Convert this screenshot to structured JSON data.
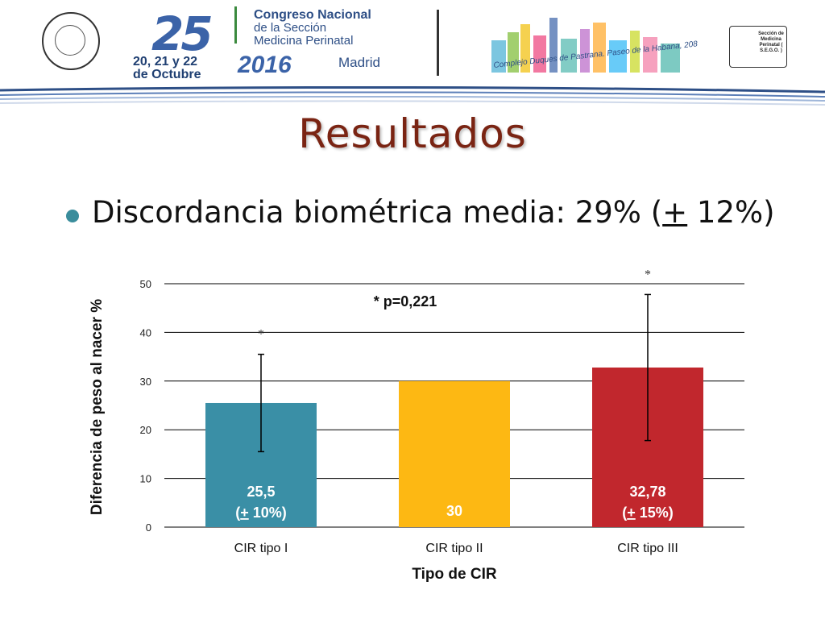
{
  "header": {
    "anniversary": "25",
    "congress_line1": "Congreso Nacional",
    "congress_line2": "de la Sección",
    "congress_line3": "Medicina Perinatal",
    "dates_line1": "20, 21 y 22",
    "dates_line2": "de Octubre",
    "year": "2016",
    "city": "Madrid",
    "venue": "Complejo Duques de Pastrana. Paseo de la Habana, 208",
    "right_logo_text": "Sección de Medicina Perinatal ( S.E.G.O. )"
  },
  "slide": {
    "title": "Resultados",
    "bullet_prefix": "Discordancia biométrica media: 29% (",
    "bullet_pm": "+",
    "bullet_suffix": " 12%)"
  },
  "colors": {
    "title": "#7a2413",
    "bar_tipo1": "#3a8fa6",
    "bar_tipo2": "#fdb813",
    "bar_tipo3": "#c1272d",
    "bullet": "#3a8d9c"
  },
  "chart_data": {
    "type": "bar",
    "categories": [
      "CIR tipo I",
      "CIR tipo II",
      "CIR tipo III"
    ],
    "values": [
      25.5,
      30,
      32.78
    ],
    "error_bars": [
      10,
      null,
      15
    ],
    "data_labels": [
      [
        "25,5",
        "(+ 10%)"
      ],
      [
        "30"
      ],
      [
        "32,78",
        "(+ 15%)"
      ]
    ],
    "significance_marks": [
      "*",
      "",
      "*"
    ],
    "annotation": "* p=0,221",
    "xlabel": "Tipo de CIR",
    "ylabel": "Diferencia de peso  al nacer %",
    "ylim": [
      0,
      50
    ],
    "yticks": [
      0,
      10,
      20,
      30,
      40,
      50
    ],
    "grid": true,
    "legend": "none"
  }
}
